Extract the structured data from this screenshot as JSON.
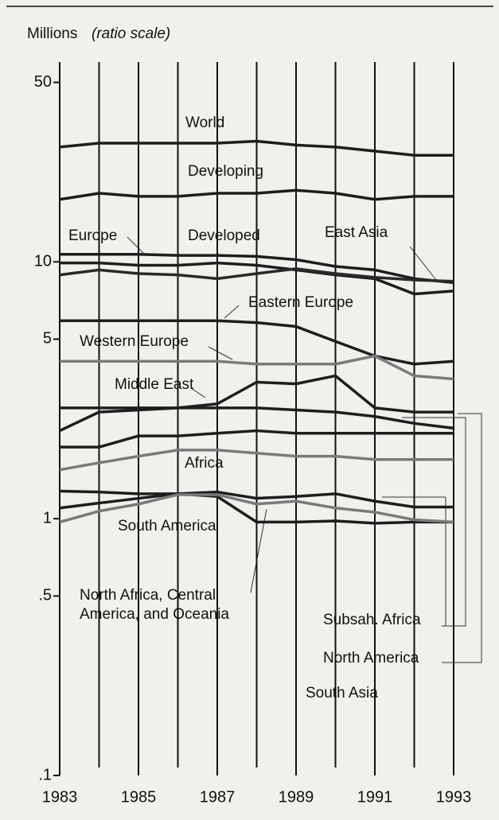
{
  "chart_data": {
    "type": "line",
    "y_label": "Millions",
    "y_label_note": "(ratio scale)",
    "log_scale": true,
    "x": [
      1983,
      1984,
      1985,
      1986,
      1987,
      1988,
      1989,
      1990,
      1991,
      1992,
      1993
    ],
    "xlim": [
      1983,
      1993
    ],
    "xticks": [
      1983,
      1985,
      1987,
      1989,
      1991,
      1993
    ],
    "ylim": [
      0.1,
      60
    ],
    "yticks": [
      50,
      10,
      5,
      1,
      {
        "value": 0.5,
        "label": ".5"
      },
      {
        "value": 0.1,
        "label": ".1"
      }
    ],
    "series": [
      {
        "name": "World",
        "color": "#1e1e1e",
        "values": [
          28,
          29,
          29,
          29,
          29,
          29.5,
          28.5,
          28,
          27,
          26,
          26
        ]
      },
      {
        "name": "Developing",
        "color": "#1e1e1e",
        "values": [
          17.5,
          18.5,
          18,
          18,
          18.5,
          18.5,
          19,
          18.5,
          17.5,
          18,
          18
        ]
      },
      {
        "name": "Europe",
        "color": "#1e1e1e",
        "values": [
          10.7,
          10.7,
          10.7,
          10.6,
          10.6,
          10.5,
          10.2,
          9.6,
          9.3,
          8.6,
          8.3
        ]
      },
      {
        "name": "Developed",
        "color": "#1e1e1e",
        "values": [
          9.9,
          9.9,
          9.7,
          9.7,
          9.9,
          9.7,
          9.3,
          8.9,
          8.6,
          7.5,
          7.7
        ]
      },
      {
        "name": "East Asia",
        "color": "#2a2a2a",
        "values": [
          8.9,
          9.3,
          9.0,
          8.9,
          8.6,
          9.0,
          9.4,
          9.0,
          8.7,
          8.5,
          8.4
        ]
      },
      {
        "name": "Eastern Europe",
        "color": "#1e1e1e",
        "values": [
          5.9,
          5.9,
          5.9,
          5.9,
          5.9,
          5.8,
          5.6,
          4.9,
          4.3,
          4.0,
          4.1
        ]
      },
      {
        "name": "Western Europe",
        "color": "#7a7a7a",
        "values": [
          4.1,
          4.1,
          4.1,
          4.1,
          4.1,
          4.0,
          4.0,
          4.0,
          4.3,
          3.6,
          3.5
        ]
      },
      {
        "name": "Middle East",
        "color": "#1e1e1e",
        "values": [
          2.2,
          2.6,
          2.65,
          2.7,
          2.8,
          3.4,
          3.35,
          3.6,
          2.7,
          2.6,
          2.6
        ]
      },
      {
        "name": "North America",
        "color": "#1e1e1e",
        "values": [
          2.7,
          2.7,
          2.7,
          2.7,
          2.7,
          2.7,
          2.65,
          2.6,
          2.5,
          2.35,
          2.25
        ]
      },
      {
        "name": "South Asia",
        "color": "#1e1e1e",
        "values": [
          1.9,
          1.9,
          2.1,
          2.1,
          2.15,
          2.2,
          2.15,
          2.15,
          2.15,
          2.15,
          2.15
        ]
      },
      {
        "name": "Africa",
        "color": "#7a7a7a",
        "values": [
          1.55,
          1.65,
          1.75,
          1.85,
          1.85,
          1.8,
          1.75,
          1.75,
          1.7,
          1.7,
          1.7
        ]
      },
      {
        "name": "Subsah. Africa",
        "color": "#1e1e1e",
        "values": [
          1.28,
          1.27,
          1.25,
          1.25,
          1.27,
          1.2,
          1.22,
          1.25,
          1.17,
          1.11,
          1.11
        ]
      },
      {
        "name": "South America",
        "color": "#1e1e1e",
        "values": [
          1.1,
          1.15,
          1.2,
          1.25,
          1.22,
          0.97,
          0.97,
          0.98,
          0.96,
          0.97,
          0.97
        ]
      },
      {
        "name": "North Africa, Central America, and Oceania",
        "color": "#7a7a7a",
        "values": [
          0.97,
          1.07,
          1.14,
          1.24,
          1.24,
          1.14,
          1.17,
          1.1,
          1.06,
          0.99,
          0.97
        ]
      }
    ]
  }
}
